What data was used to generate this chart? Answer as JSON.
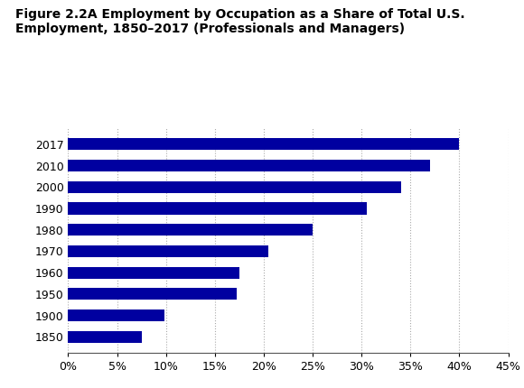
{
  "title_line1": "Figure 2.2A Employment by Occupation as a Share of Total U.S.",
  "title_line2": "Employment, 1850–2017 (Professionals and Managers)",
  "years": [
    "2017",
    "2010",
    "2000",
    "1990",
    "1980",
    "1970",
    "1960",
    "1950",
    "1900",
    "1850"
  ],
  "values": [
    0.4,
    0.37,
    0.34,
    0.305,
    0.25,
    0.205,
    0.175,
    0.172,
    0.098,
    0.075
  ],
  "bar_color": "#0000A0",
  "xlim": [
    0,
    0.45
  ],
  "xticks": [
    0,
    0.05,
    0.1,
    0.15,
    0.2,
    0.25,
    0.3,
    0.35,
    0.4,
    0.45
  ],
  "xtick_labels": [
    "0%",
    "5%",
    "10%",
    "15%",
    "20%",
    "25%",
    "30%",
    "35%",
    "40%",
    "45%"
  ],
  "grid_color": "#aaaaaa",
  "title_fontsize": 10.0,
  "tick_fontsize": 9.0,
  "background_color": "#ffffff"
}
